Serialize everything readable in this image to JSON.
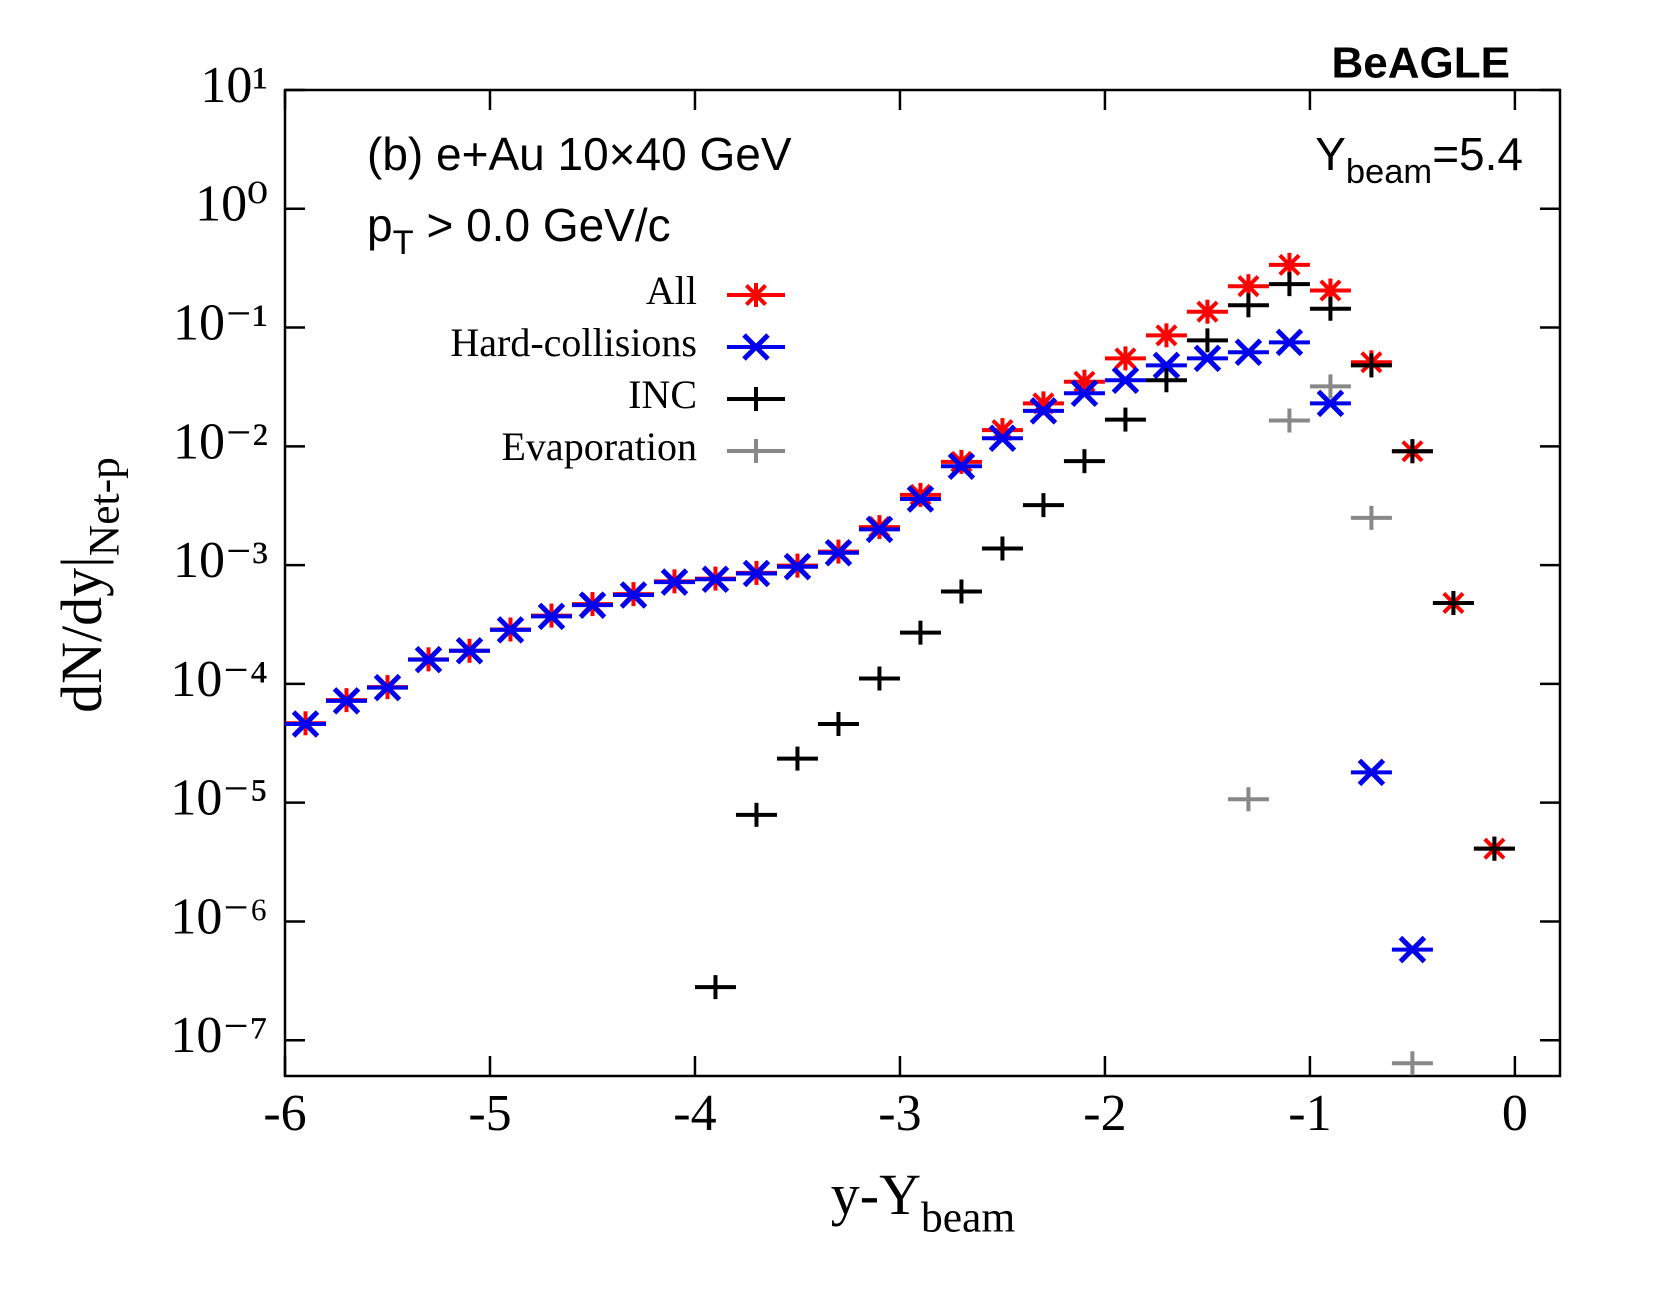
{
  "chart_data": {
    "type": "scatter",
    "brand": "BeAGLE",
    "annotation": "(b) e+Au 10×40 GeV",
    "cut": {
      "text": "p",
      "sub": "T",
      "rest": " > 0.0 GeV/c"
    },
    "beam": {
      "text": "Y",
      "sub": "beam",
      "rest": "=5.4"
    },
    "x_label": {
      "text": "y-Y",
      "sub": "beam"
    },
    "y_label": {
      "text": "dN/dy|",
      "sub": "Net-p"
    },
    "x": [
      -5.9,
      -5.7,
      -5.5,
      -5.3,
      -5.1,
      -4.9,
      -4.7,
      -4.5,
      -4.3,
      -4.1,
      -3.9,
      -3.7,
      -3.5,
      -3.3,
      -3.1,
      -2.9,
      -2.7,
      -2.5,
      -2.3,
      -2.1,
      -1.9,
      -1.7,
      -1.5,
      -1.3,
      -1.1,
      -0.9,
      -0.7,
      -0.5,
      -0.3,
      -0.1
    ],
    "series": [
      {
        "name": "All",
        "color": "#ff0000",
        "marker": "star",
        "values": [
          4.66e-05,
          7.3e-05,
          9.4e-05,
          0.000161,
          0.00019,
          0.000287,
          0.000376,
          0.00047,
          0.00057,
          0.00073,
          0.00077,
          0.00086,
          0.00099,
          0.0013,
          0.00209,
          0.0039,
          0.0074,
          0.0137,
          0.023,
          0.035,
          0.055,
          0.086,
          0.136,
          0.223,
          0.337,
          0.205,
          0.051,
          0.0091,
          0.00048,
          4.1e-06
        ]
      },
      {
        "name": "Hard-collisions",
        "color": "#0000ee",
        "marker": "x",
        "values": [
          4.6e-05,
          7.2e-05,
          9.3e-05,
          0.00016,
          0.00019,
          0.000285,
          0.00037,
          0.00046,
          0.00056,
          0.00072,
          0.00076,
          0.00085,
          0.00097,
          0.00127,
          0.002,
          0.0036,
          0.0068,
          0.0117,
          0.0199,
          0.028,
          0.036,
          0.048,
          0.055,
          0.062,
          0.075,
          0.023,
          1.8e-05,
          5.8e-07,
          null,
          null
        ]
      },
      {
        "name": "INC",
        "color": "#000000",
        "marker": "plus",
        "values": [
          null,
          null,
          null,
          null,
          null,
          null,
          null,
          null,
          null,
          null,
          2.8e-07,
          7.9e-06,
          2.35e-05,
          4.6e-05,
          0.000111,
          0.00027,
          0.0006,
          0.00138,
          0.0032,
          0.0075,
          0.0168,
          0.036,
          0.078,
          0.154,
          0.232,
          0.144,
          0.048,
          0.0091,
          0.00048,
          4.1e-06
        ]
      },
      {
        "name": "Evaporation",
        "color": "#888888",
        "marker": "plus",
        "values": [
          null,
          null,
          null,
          null,
          null,
          null,
          null,
          null,
          null,
          null,
          null,
          null,
          null,
          null,
          null,
          null,
          null,
          null,
          null,
          null,
          null,
          null,
          null,
          1.07e-05,
          0.0165,
          0.032,
          0.0025,
          6.4e-08,
          null,
          null
        ]
      }
    ],
    "xlim": [
      -6,
      0.22
    ],
    "ylim": [
      5e-08,
      10
    ],
    "log_y": true,
    "xticks": [
      -6,
      -5,
      -4,
      -3,
      -2,
      -1,
      0
    ],
    "yticks": [
      {
        "value": 10,
        "label": "10¹"
      },
      {
        "value": 1,
        "label": "10⁰"
      },
      {
        "value": 0.1,
        "label": "10⁻¹"
      },
      {
        "value": 0.01,
        "label": "10⁻²"
      },
      {
        "value": 0.001,
        "label": "10⁻³"
      },
      {
        "value": 0.0001,
        "label": "10⁻⁴"
      },
      {
        "value": 1e-05,
        "label": "10⁻⁵"
      },
      {
        "value": 1e-06,
        "label": "10⁻⁶"
      },
      {
        "value": 1e-07,
        "label": "10⁻⁷"
      }
    ]
  }
}
